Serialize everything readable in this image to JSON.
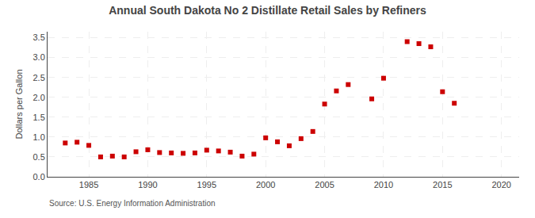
{
  "chart_data": {
    "type": "scatter",
    "title": "Annual South Dakota No 2 Distillate Retail Sales by Refiners",
    "ylabel": "Dollars per Gallon",
    "annotations": [
      "Source: U.S. Energy Information Administration"
    ],
    "x": [
      1983,
      1984,
      1985,
      1986,
      1987,
      1988,
      1989,
      1990,
      1991,
      1992,
      1993,
      1994,
      1995,
      1996,
      1997,
      1998,
      1999,
      2000,
      2001,
      2002,
      2003,
      2004,
      2005,
      2006,
      2007,
      2009,
      2010,
      2012,
      2013,
      2014,
      2015,
      2016
    ],
    "values": [
      0.85,
      0.87,
      0.79,
      0.5,
      0.52,
      0.5,
      0.63,
      0.68,
      0.61,
      0.6,
      0.59,
      0.6,
      0.67,
      0.65,
      0.62,
      0.52,
      0.57,
      0.98,
      0.88,
      0.78,
      0.96,
      1.14,
      1.83,
      2.16,
      2.32,
      1.96,
      2.48,
      3.4,
      3.35,
      3.27,
      2.14,
      1.85
    ],
    "color": "#cc0000",
    "marker": "square",
    "xlim": [
      1981.5,
      2021.5
    ],
    "ylim": [
      0.0,
      3.65
    ],
    "xticks": [
      1985,
      1990,
      1995,
      2000,
      2005,
      2010,
      2015,
      2020
    ],
    "yticks": [
      {
        "value": 0,
        "label": "0.0"
      },
      0.5,
      {
        "value": 1,
        "label": "1.0"
      },
      1.5,
      {
        "value": 2,
        "label": "2.0"
      },
      2.5,
      {
        "value": 3,
        "label": "3.0"
      },
      3.5
    ],
    "grid": true
  }
}
